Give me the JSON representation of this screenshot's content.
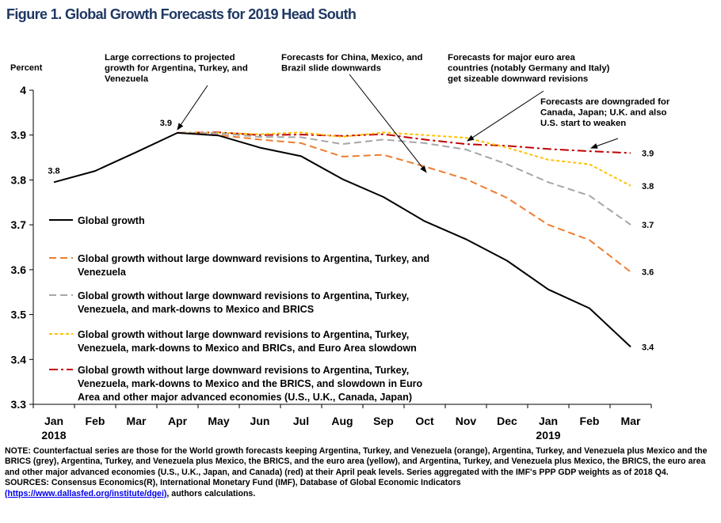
{
  "figure_title": "Figure 1. Global Growth Forecasts for 2019 Head South",
  "chart_data": {
    "type": "line",
    "ylabel": "Percent",
    "xlabel": "",
    "ylim": [
      3.3,
      4.0
    ],
    "yticks": [
      "3.3",
      "3.4",
      "3.5",
      "3.6",
      "3.7",
      "3.8",
      "3.9",
      "4"
    ],
    "categories": [
      "Jan",
      "Feb",
      "Mar",
      "Apr",
      "May",
      "Jun",
      "Jul",
      "Aug",
      "Sep",
      "Oct",
      "Nov",
      "Dec",
      "Jan",
      "Feb",
      "Mar"
    ],
    "year_labels": [
      {
        "index": 0,
        "text": "2018"
      },
      {
        "index": 12,
        "text": "2019"
      }
    ],
    "grid": false,
    "series": [
      {
        "name": "Global growth",
        "color": "#000000",
        "dash": "solid",
        "values": [
          3.795,
          3.82,
          3.862,
          3.905,
          3.899,
          3.872,
          3.853,
          3.802,
          3.762,
          3.708,
          3.668,
          3.62,
          3.556,
          3.514,
          3.428
        ]
      },
      {
        "name": "Global growth without large downward revisions to Argentina, Turkey, and Venezuela",
        "color": "#ed7d31",
        "dash": "dash",
        "start": 3,
        "values": [
          null,
          null,
          null,
          3.905,
          3.9,
          3.89,
          3.882,
          3.852,
          3.856,
          3.83,
          3.802,
          3.76,
          3.7,
          3.666,
          3.595
        ]
      },
      {
        "name": "Global growth without large downward revisions to Argentina, Turkey, Venezuela, and mark-downs to Mexico and BRICS",
        "color": "#a6a6a6",
        "dash": "dash",
        "start": 3,
        "values": [
          null,
          null,
          null,
          3.905,
          3.904,
          3.896,
          3.895,
          3.88,
          3.89,
          3.882,
          3.868,
          3.835,
          3.795,
          3.765,
          3.7
        ]
      },
      {
        "name": "Global growth without large downward revisions to Argentina, Turkey, Venezuela, mark-downs to Mexico and BRICs, and Euro Area slowdown",
        "color": "#ffc000",
        "dash": "dot",
        "start": 3,
        "values": [
          null,
          null,
          null,
          3.905,
          3.905,
          3.902,
          3.906,
          3.896,
          3.906,
          3.9,
          3.894,
          3.872,
          3.845,
          3.835,
          3.787
        ]
      },
      {
        "name": "Global growth without large downward revisions to Argentina, Turkey, Venezuela, mark-downs to Mexico and the BRICS, and slowdown in Euro Area and other major advanced economies (U.S., U.K., Canada, Japan)",
        "color": "#c00000",
        "dash": "dashdot",
        "start": 3,
        "values": [
          null,
          null,
          null,
          3.905,
          3.906,
          3.9,
          3.901,
          3.898,
          3.902,
          3.89,
          3.88,
          3.876,
          3.869,
          3.864,
          3.86
        ]
      }
    ],
    "legend": [
      {
        "lines": [
          "Global growth"
        ]
      },
      {
        "lines": [
          "Global growth without large downward revisions to Argentina, Turkey, and",
          "Venezuela"
        ]
      },
      {
        "lines": [
          "Global growth without large downward revisions to Argentina, Turkey,",
          "Venezuela, and mark-downs to Mexico and BRICS"
        ]
      },
      {
        "lines": [
          "Global growth without large downward revisions to Argentina, Turkey,",
          "Venezuela, mark-downs to Mexico and BRICs, and Euro Area slowdown"
        ]
      },
      {
        "lines": [
          "Global growth without large downward revisions to Argentina, Turkey,",
          "Venezuela, mark-downs to Mexico and the BRICS, and slowdown in Euro",
          "Area and other major advanced economies (U.S., U.K., Canada, Japan)"
        ]
      }
    ],
    "legend_placement": "lower-left inside plot",
    "point_labels": [
      {
        "text": "3.8",
        "index": 0,
        "value": 3.795
      },
      {
        "text": "3.9",
        "index": 3,
        "value": 3.905
      },
      {
        "text": "3.9",
        "index": 14,
        "value": 3.86
      },
      {
        "text": "3.8",
        "index": 14,
        "value": 3.787
      },
      {
        "text": "3.7",
        "index": 14,
        "value": 3.7
      },
      {
        "text": "3.6",
        "index": 14,
        "value": 3.595
      },
      {
        "text": "3.4",
        "index": 14,
        "value": 3.428
      }
    ],
    "annotations": [
      {
        "lines": [
          "Large corrections to projected",
          "growth for Argentina, Turkey, and",
          "Venezuela"
        ],
        "arrow_to": {
          "index": 3,
          "value": 3.905
        }
      },
      {
        "lines": [
          "Forecasts for China, Mexico, and",
          "Brazil slide downwards"
        ],
        "arrow_to": {
          "index": 9,
          "value": 3.81
        }
      },
      {
        "lines": [
          "Forecasts for major euro area",
          "countries (notably Germany and Italy)",
          "get sizeable downward  revisions"
        ],
        "arrow_to": {
          "index": 10,
          "value": 3.88
        }
      },
      {
        "lines": [
          "Forecasts are downgraded  for",
          "Canada, Japan; U.K. and also",
          "U.S. start to weaken"
        ],
        "arrow_to": {
          "index": 13,
          "value": 3.864
        }
      }
    ]
  },
  "notes": {
    "note": "NOTE: Counterfactual  series are those for the World growth forecasts keeping Argentina, Turkey, and Venezuela (orange), Argentina, Turkey, and Venezuela plus Mexico and the BRICS (grey), Argentina, Turkey, and Venezuela plus Mexico, the BRICS, and the euro area (yellow), and Argentina, Turkey, and Venezuela plus Mexico, the BRICS, the euro area and other major advanced  economies (U.S., U.K., Japan, and Canada) (red) at their April peak levels. Series aggregated  with the IMF's PPP GDP weights as of 2018 Q4.",
    "sources": "SOURCES: Consensus Economics(R), International Monetary Fund (IMF), Database of Global Economic Indicators",
    "link": "(https://www.dallasfed.org/institute/dgei)",
    "sources_tail": ",  authors calculations."
  }
}
